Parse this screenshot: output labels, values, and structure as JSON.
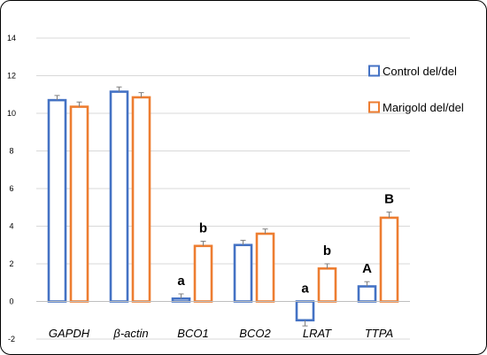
{
  "chart_data": {
    "type": "bar",
    "title": "",
    "xlabel": "",
    "ylabel": "",
    "ylim": [
      -2,
      14
    ],
    "yticks": [
      -2,
      0,
      2,
      4,
      6,
      8,
      10,
      12,
      14
    ],
    "grid": "horizontal",
    "legend_position": "right",
    "categories": [
      "GAPDH",
      "β-actin",
      "BCO1",
      "BCO2",
      "LRAT",
      "TTPA"
    ],
    "series": [
      {
        "name": "Control del/del",
        "color": "#4472C4",
        "values": [
          10.7,
          11.15,
          0.15,
          3.0,
          -1.0,
          0.8
        ],
        "errors": [
          0.25,
          0.25,
          0.25,
          0.25,
          0.3,
          0.25
        ],
        "annotations": [
          "",
          "",
          "a",
          "",
          "a",
          "A"
        ]
      },
      {
        "name": "Marigold del/del",
        "color": "#ED7D31",
        "values": [
          10.35,
          10.85,
          2.95,
          3.6,
          1.75,
          4.45
        ],
        "errors": [
          0.25,
          0.25,
          0.25,
          0.25,
          0.25,
          0.3
        ],
        "annotations": [
          "",
          "",
          "b",
          "",
          "b",
          "B"
        ]
      }
    ]
  }
}
